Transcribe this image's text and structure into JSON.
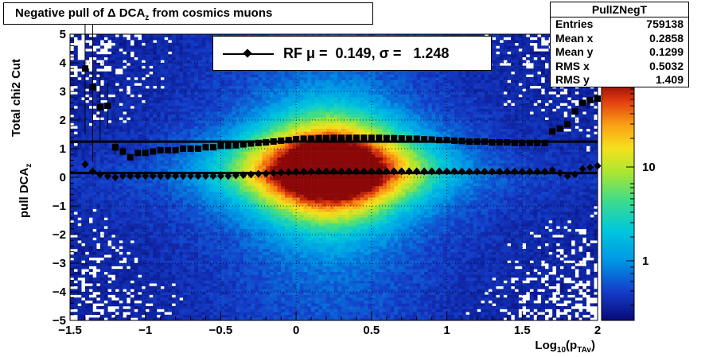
{
  "title": {
    "text": "Negative pull of Δ DCA",
    "sub": "z",
    "suffix": " from cosmics muons"
  },
  "stats": {
    "name": "PullZNegT",
    "rows": [
      {
        "label": "Entries",
        "value": "759138"
      },
      {
        "label": "Mean x",
        "value": "0.2858"
      },
      {
        "label": "Mean y",
        "value": "0.1299"
      },
      {
        "label": "RMS x",
        "value": "0.5032"
      },
      {
        "label": "RMS y",
        "value": "1.409"
      }
    ]
  },
  "legend": {
    "text": "RF μ =  0.149, σ =   1.248"
  },
  "ylabel_top": "Total chi2 Cut",
  "ylabel_bottom": {
    "text": "pull DCA",
    "sub": "z"
  },
  "xlabel": {
    "text": "Log",
    "sub": "10",
    "suffix": "(p",
    "sub2": "TAv",
    "end": ")"
  },
  "chart_data": {
    "type": "heatmap",
    "title": "Negative pull of Δ DCA_z from cosmics muons",
    "xlabel": "Log10(p_TAv)",
    "ylabel": "pull DCA_z",
    "xlim": [
      -1.5,
      2
    ],
    "ylim": [
      -5,
      5
    ],
    "x_ticks": [
      "−1.5",
      "−1",
      "−0.5",
      "0",
      "0.5",
      "1",
      "1.5",
      "2"
    ],
    "y_ticks": [
      "−5",
      "−4",
      "−3",
      "−2",
      "−1",
      "0",
      "1",
      "2",
      "3",
      "4",
      "5"
    ],
    "z_scale": "log",
    "z_ticks": [
      "1",
      "10"
    ],
    "grid": true,
    "series": [
      {
        "name": "RF μ",
        "marker": "diamond",
        "x": [
          -1.4,
          -1.35,
          -1.3,
          -1.25,
          -1.2,
          -1.15,
          -1.1,
          -1.05,
          -1.0,
          -0.95,
          -0.9,
          -0.85,
          -0.8,
          -0.75,
          -0.7,
          -0.65,
          -0.6,
          -0.55,
          -0.5,
          -0.45,
          -0.4,
          -0.35,
          -0.3,
          -0.25,
          -0.2,
          -0.15,
          -0.1,
          -0.05,
          0.0,
          0.05,
          0.1,
          0.15,
          0.2,
          0.25,
          0.3,
          0.35,
          0.4,
          0.45,
          0.5,
          0.55,
          0.6,
          0.65,
          0.7,
          0.75,
          0.8,
          0.85,
          0.9,
          0.95,
          1.0,
          1.05,
          1.1,
          1.15,
          1.2,
          1.25,
          1.3,
          1.35,
          1.4,
          1.45,
          1.5,
          1.55,
          1.6,
          1.65,
          1.7,
          1.75,
          1.8,
          1.85,
          1.9,
          1.95,
          2.0
        ],
        "y": [
          0.45,
          0.2,
          0.1,
          0.05,
          0.0,
          0.05,
          0.05,
          0.05,
          0.05,
          0.05,
          0.05,
          0.05,
          0.05,
          0.05,
          0.05,
          0.05,
          0.05,
          0.05,
          0.05,
          0.05,
          0.07,
          0.08,
          0.1,
          0.12,
          0.13,
          0.15,
          0.17,
          0.18,
          0.19,
          0.2,
          0.2,
          0.21,
          0.21,
          0.21,
          0.21,
          0.21,
          0.21,
          0.21,
          0.21,
          0.21,
          0.21,
          0.21,
          0.21,
          0.21,
          0.21,
          0.21,
          0.21,
          0.21,
          0.21,
          0.21,
          0.2,
          0.2,
          0.2,
          0.2,
          0.2,
          0.2,
          0.2,
          0.2,
          0.2,
          0.2,
          0.2,
          0.2,
          0.25,
          0.15,
          0.05,
          0.1,
          0.3,
          0.35,
          0.4
        ]
      },
      {
        "name": "RF σ",
        "marker": "square",
        "x": [
          -1.4,
          -1.35,
          -1.3,
          -1.25,
          -1.2,
          -1.15,
          -1.1,
          -1.05,
          -1.0,
          -0.95,
          -0.9,
          -0.85,
          -0.8,
          -0.75,
          -0.7,
          -0.65,
          -0.6,
          -0.55,
          -0.5,
          -0.45,
          -0.4,
          -0.35,
          -0.3,
          -0.25,
          -0.2,
          -0.15,
          -0.1,
          -0.05,
          0.0,
          0.05,
          0.1,
          0.15,
          0.2,
          0.25,
          0.3,
          0.35,
          0.4,
          0.45,
          0.5,
          0.55,
          0.6,
          0.65,
          0.7,
          0.75,
          0.8,
          0.85,
          0.9,
          0.95,
          1.0,
          1.05,
          1.1,
          1.15,
          1.2,
          1.25,
          1.3,
          1.35,
          1.4,
          1.45,
          1.5,
          1.55,
          1.6,
          1.65,
          1.7,
          1.75,
          1.8,
          1.85,
          1.9,
          1.95,
          2.0
        ],
        "y": [
          3.8,
          3.15,
          2.45,
          2.5,
          1.05,
          0.9,
          0.7,
          0.85,
          0.85,
          0.9,
          0.95,
          0.95,
          0.95,
          1.0,
          1.0,
          1.0,
          1.05,
          1.05,
          1.1,
          1.1,
          1.12,
          1.15,
          1.18,
          1.2,
          1.22,
          1.25,
          1.28,
          1.3,
          1.33,
          1.35,
          1.35,
          1.37,
          1.37,
          1.38,
          1.38,
          1.38,
          1.38,
          1.38,
          1.38,
          1.38,
          1.37,
          1.37,
          1.36,
          1.35,
          1.35,
          1.33,
          1.32,
          1.3,
          1.3,
          1.28,
          1.27,
          1.25,
          1.25,
          1.25,
          1.22,
          1.22,
          1.22,
          1.2,
          1.2,
          1.2,
          1.2,
          1.2,
          1.6,
          1.7,
          1.85,
          2.3,
          2.6,
          2.7,
          2.75
        ]
      }
    ],
    "fit_lines": [
      {
        "name": "mean fit",
        "y": 0.149
      },
      {
        "name": "sigma fit",
        "y": 1.248
      }
    ]
  }
}
